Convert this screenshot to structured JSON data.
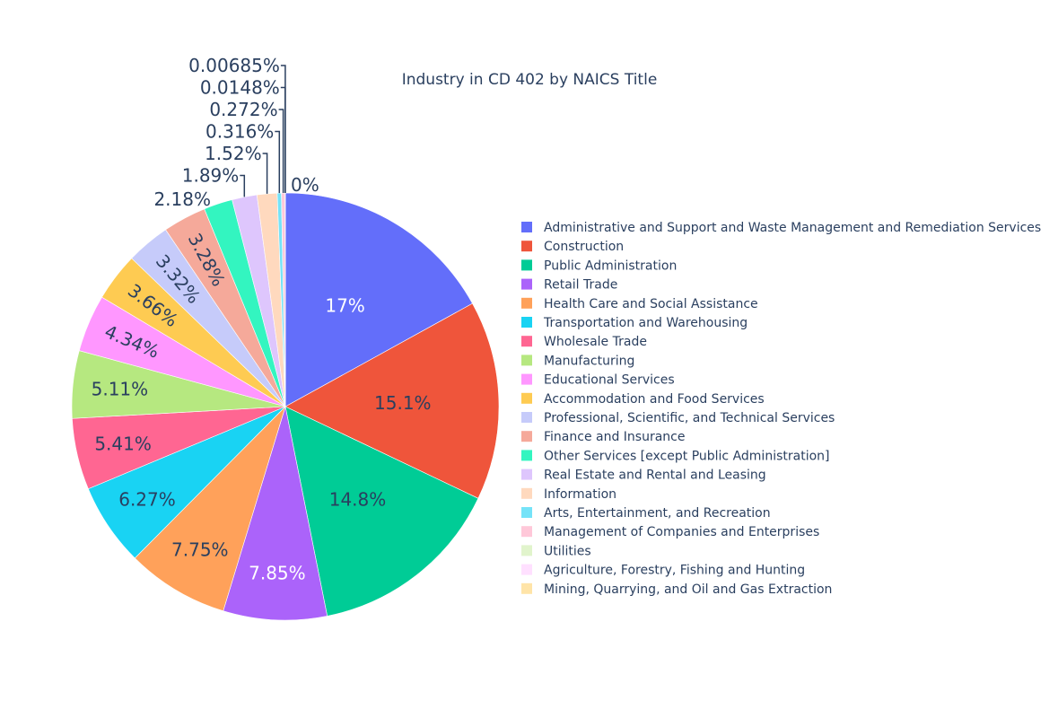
{
  "chart_data": {
    "type": "pie",
    "title": "Industry in CD 402 by NAICS Title",
    "legend_position": "right",
    "series": [
      {
        "name": "Administrative and Support and Waste Management and Remediation Services",
        "percent": 17,
        "label": "17%",
        "color": "#636efa"
      },
      {
        "name": "Construction",
        "percent": 15.1,
        "label": "15.1%",
        "color": "#EF553B"
      },
      {
        "name": "Public Administration",
        "percent": 14.8,
        "label": "14.8%",
        "color": "#00cc96"
      },
      {
        "name": "Retail Trade",
        "percent": 7.85,
        "label": "7.85%",
        "color": "#ab63fa"
      },
      {
        "name": "Health Care and Social Assistance",
        "percent": 7.75,
        "label": "7.75%",
        "color": "#FFA15A"
      },
      {
        "name": "Transportation and Warehousing",
        "percent": 6.27,
        "label": "6.27%",
        "color": "#19d3f3"
      },
      {
        "name": "Wholesale Trade",
        "percent": 5.41,
        "label": "5.41%",
        "color": "#FF6692"
      },
      {
        "name": "Manufacturing",
        "percent": 5.11,
        "label": "5.11%",
        "color": "#B6E880"
      },
      {
        "name": "Educational Services",
        "percent": 4.34,
        "label": "4.34%",
        "color": "#FF97FF"
      },
      {
        "name": "Accommodation and Food Services",
        "percent": 3.66,
        "label": "3.66%",
        "color": "#FECB52"
      },
      {
        "name": "Professional, Scientific, and Technical Services",
        "percent": 3.32,
        "label": "3.32%",
        "color": "#c6cbfa"
      },
      {
        "name": "Finance and Insurance",
        "percent": 3.28,
        "label": "3.28%",
        "color": "#f5a99a"
      },
      {
        "name": "Other Services [except Public Administration]",
        "percent": 2.18,
        "label": "2.18%",
        "color": "#33f5c0"
      },
      {
        "name": "Real Estate and Rental and Leasing",
        "percent": 1.89,
        "label": "1.89%",
        "color": "#dec6fd"
      },
      {
        "name": "Information",
        "percent": 1.52,
        "label": "1.52%",
        "color": "#ffd9be"
      },
      {
        "name": "Arts, Entertainment, and Recreation",
        "percent": 0.316,
        "label": "0.316%",
        "color": "#75e3f8"
      },
      {
        "name": "Management of Companies and Enterprises",
        "percent": 0.272,
        "label": "0.272%",
        "color": "#ffc8d9"
      },
      {
        "name": "Utilities",
        "percent": 0.0148,
        "label": "0.0148%",
        "color": "#e1f4cc"
      },
      {
        "name": "Agriculture, Forestry, Fishing and Hunting",
        "percent": 0.00685,
        "label": "0.00685%",
        "color": "#ffe0ff"
      },
      {
        "name": "Mining, Quarrying, and Oil and Gas Extraction",
        "percent": 0,
        "label": "0%",
        "color": "#ffe4a8"
      }
    ]
  }
}
